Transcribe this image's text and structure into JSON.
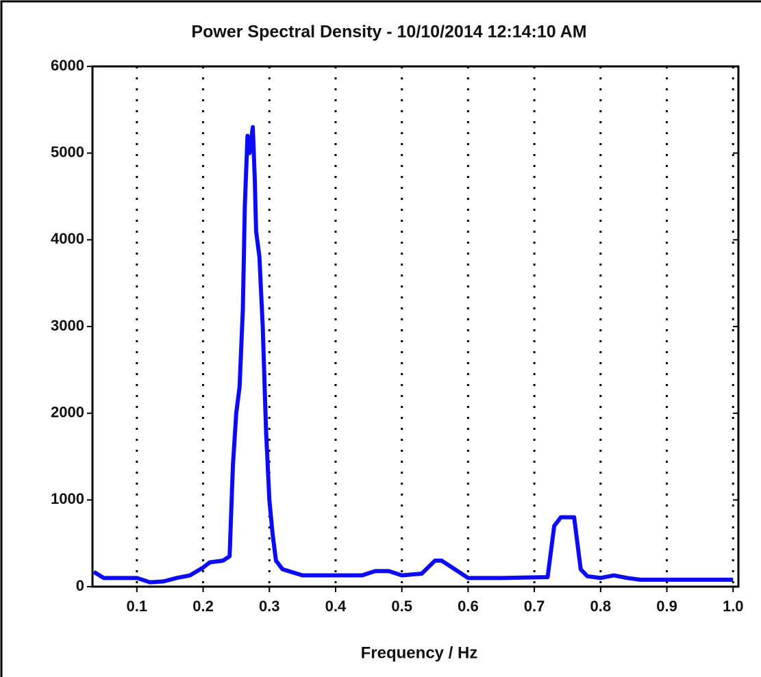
{
  "chart_data": {
    "type": "line",
    "title": "Power Spectral Density - 10/10/2014 12:14:10 AM",
    "x_label": "Frequency / Hz",
    "xlim": [
      0.033,
      1.008
    ],
    "ylim": [
      0,
      6000
    ],
    "xticks": [
      0.1,
      0.2,
      0.3,
      0.4,
      0.5,
      0.6,
      0.7,
      0.8,
      0.9,
      {
        "value": 1,
        "label": "1.0"
      }
    ],
    "yticks": [
      0,
      1000,
      2000,
      3000,
      4000,
      5000,
      6000
    ],
    "grid": true,
    "series": [
      {
        "color": "#0b0bf5",
        "x": [
          0.035,
          0.05,
          0.1,
          0.12,
          0.14,
          0.16,
          0.18,
          0.2,
          0.21,
          0.23,
          0.24,
          0.245,
          0.25,
          0.255,
          0.26,
          0.263,
          0.267,
          0.27,
          0.275,
          0.278,
          0.28,
          0.285,
          0.29,
          0.295,
          0.3,
          0.305,
          0.31,
          0.32,
          0.35,
          0.4,
          0.44,
          0.46,
          0.48,
          0.5,
          0.53,
          0.55,
          0.56,
          0.58,
          0.6,
          0.65,
          0.72,
          0.73,
          0.74,
          0.76,
          0.77,
          0.78,
          0.8,
          0.82,
          0.84,
          0.86,
          0.9,
          1.0
        ],
        "values": [
          170,
          100,
          100,
          50,
          60,
          100,
          130,
          220,
          280,
          300,
          350,
          1400,
          2000,
          2300,
          3200,
          4400,
          5200,
          5000,
          5300,
          4700,
          4100,
          3800,
          3000,
          1800,
          1000,
          600,
          300,
          200,
          130,
          130,
          130,
          180,
          180,
          130,
          150,
          300,
          300,
          200,
          100,
          100,
          110,
          700,
          800,
          800,
          200,
          120,
          100,
          130,
          100,
          80,
          80,
          80
        ]
      }
    ]
  }
}
